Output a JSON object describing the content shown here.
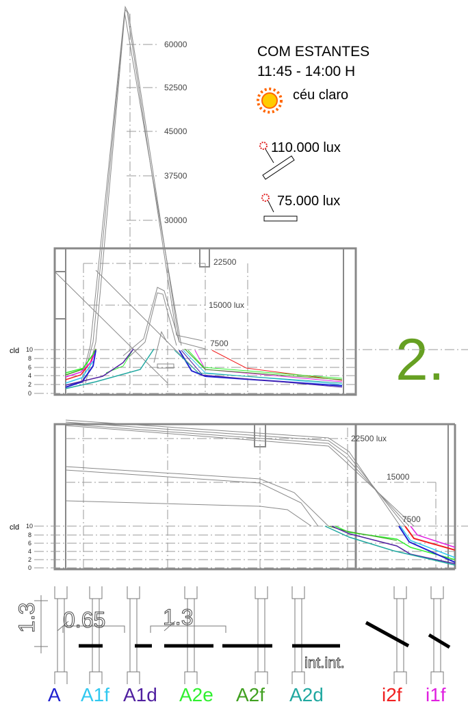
{
  "header": {
    "title": "COM ESTANTES",
    "time": "11:45 - 14:00 H",
    "sky": "céu claro"
  },
  "irradiance": [
    "110.000 lux",
    "75.000 lux"
  ],
  "figure_number": "2.",
  "top_panel": {
    "lux_labels": [
      "60000",
      "52500",
      "45000",
      "37500",
      "30000",
      "22500",
      "15000 lux",
      "7500"
    ],
    "cld_label": "cld",
    "cld_ticks": [
      "10",
      "8",
      "6",
      "4",
      "2",
      "0"
    ]
  },
  "bottom_panel": {
    "lux_labels": [
      "22500 lux",
      "15000",
      "7500"
    ],
    "cld_label": "cld",
    "cld_ticks": [
      "10",
      "8",
      "6",
      "4",
      "2",
      "0"
    ]
  },
  "dimensions": [
    "1.3",
    "0.65",
    "1.3"
  ],
  "note": "int.int.",
  "positions": [
    {
      "label": "A",
      "color": "#2020d0"
    },
    {
      "label": "A1f",
      "color": "#30c8f0"
    },
    {
      "label": "A1d",
      "color": "#5020a0"
    },
    {
      "label": "A2e",
      "color": "#30f030"
    },
    {
      "label": "A2f",
      "color": "#40a020"
    },
    {
      "label": "A2d",
      "color": "#20a8a0"
    },
    {
      "label": "i2f",
      "color": "#f02020"
    },
    {
      "label": "i1f",
      "color": "#e020e0"
    }
  ]
}
